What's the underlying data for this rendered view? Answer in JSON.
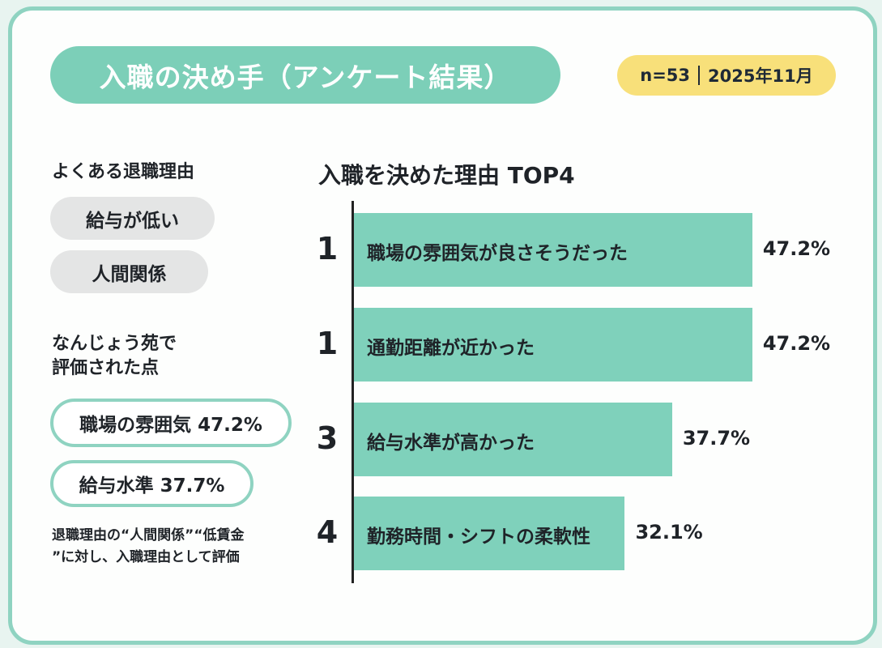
{
  "header": {
    "title": "入職の決め手（アンケート結果）",
    "sample": "n=53",
    "date": "2025年11月"
  },
  "left": {
    "exit_heading": "よくある退職理由",
    "exit_reasons": [
      "給与が低い",
      "人間関係"
    ],
    "praise_heading_1": "なんじょう苑で",
    "praise_heading_2": "評価された点",
    "praised": [
      "職場の雰囲気 47.2%",
      "給与水準 37.7%"
    ],
    "note_1": "退職理由の“人間関係”“低賃金",
    "note_2": "”に対し、入職理由として評価"
  },
  "colors": {
    "teal": "#7ccfb8",
    "yellow": "#f8e07a",
    "gray": "#e4e5e5"
  },
  "chart_data": {
    "type": "bar",
    "orientation": "horizontal",
    "title": "入職を決めた理由 TOP4",
    "ranks": [
      "1",
      "1",
      "3",
      "4"
    ],
    "categories": [
      "職場の雰囲気が良さそうだった",
      "通勤距離が近かった",
      "給与水準が高かった",
      "勤務時間・シフトの柔軟性"
    ],
    "values": [
      47.2,
      47.2,
      37.7,
      32.1
    ],
    "value_labels": [
      "47.2%",
      "47.2%",
      "37.7%",
      "32.1%"
    ],
    "unit": "%",
    "grid": false
  }
}
